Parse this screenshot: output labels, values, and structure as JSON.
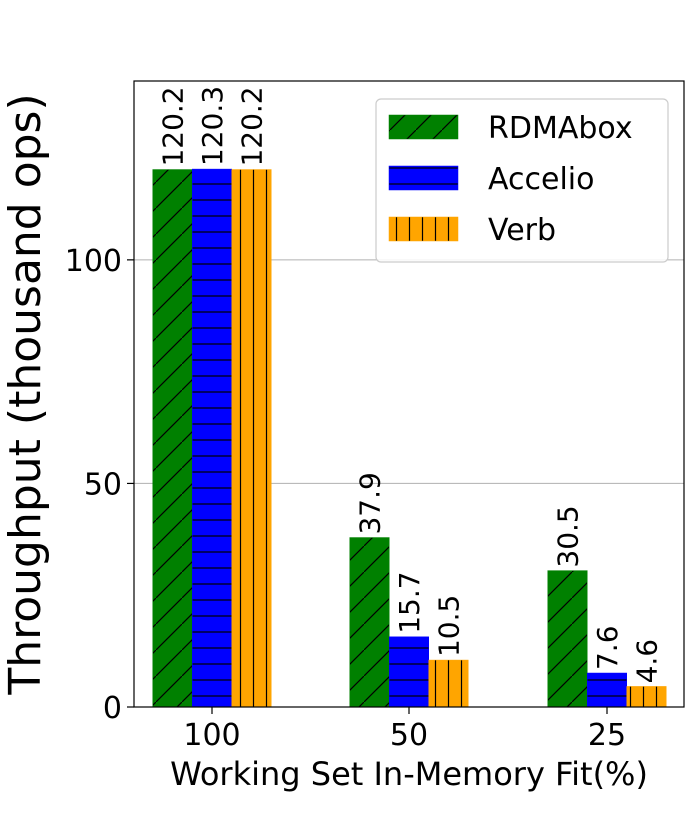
{
  "chart_data": {
    "type": "bar",
    "categories": [
      "100",
      "50",
      "25"
    ],
    "series": [
      {
        "name": "RDMAbox",
        "values": [
          120.2,
          37.9,
          30.5
        ],
        "color": "#008000",
        "hatch": "diagonal"
      },
      {
        "name": "Accelio",
        "values": [
          120.3,
          15.7,
          7.6
        ],
        "color": "#0000ff",
        "hatch": "horizontal"
      },
      {
        "name": "Verb",
        "values": [
          120.2,
          10.5,
          4.6
        ],
        "color": "#ffa500",
        "hatch": "vertical"
      }
    ],
    "value_labels": [
      [
        "120.2",
        "37.9",
        "30.5"
      ],
      [
        "120.3",
        "15.7",
        "7.6"
      ],
      [
        "120.2",
        "10.5",
        "4.6"
      ]
    ],
    "xlabel": "Working Set In-Memory Fit(%)",
    "ylabel": "Throughput (thousand ops)",
    "ylim": [
      0,
      140
    ],
    "yticks": [
      0,
      50,
      100
    ],
    "grid": "y",
    "legend_position": "top-right"
  }
}
